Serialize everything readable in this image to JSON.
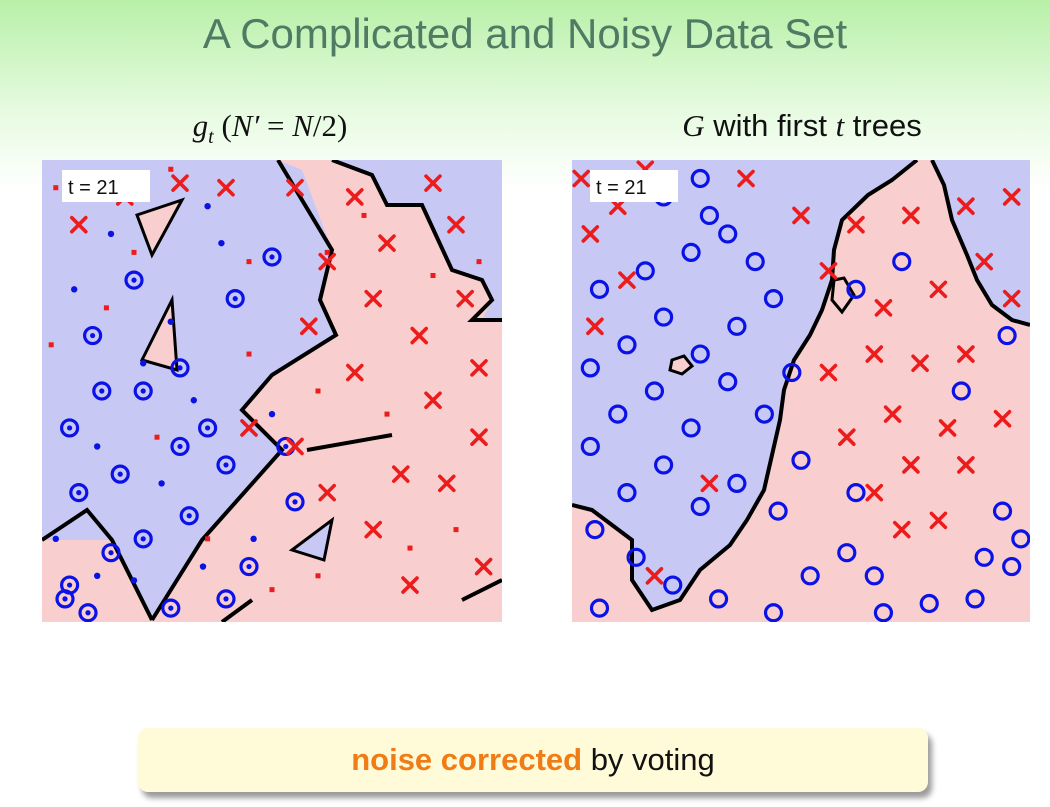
{
  "slide": {
    "title": "A Complicated and Noisy Data Set"
  },
  "panels": [
    {
      "id": "left",
      "caption_parts": [
        "g",
        "t",
        " (",
        "N′",
        " = ",
        "N",
        "/2)"
      ],
      "badge": "t = 21"
    },
    {
      "id": "right",
      "caption_parts": [
        "G",
        " with first ",
        "t",
        " trees"
      ],
      "badge": "t = 21"
    }
  ],
  "note": {
    "highlight": "noise corrected",
    "rest": " by voting"
  },
  "colors": {
    "positive_region": "#c8c8f4",
    "negative_region": "#f8cece",
    "positive_mark": "#0a12e6",
    "negative_mark": "#ec1c1c",
    "boundary": "#000000",
    "title": "#4f7a63",
    "highlight": "#f07c15"
  },
  "chart_data": [
    {
      "type": "scatter",
      "panel": "left",
      "xlim": [
        0,
        1
      ],
      "ylim": [
        0,
        1
      ],
      "grid": false,
      "note": "Axes are unlabeled; values are positions in the unit square (y from top).",
      "series": [
        {
          "values": [
            [
              0.1,
              0.98
            ],
            [
              0.05,
              0.95
            ],
            [
              0.15,
              0.85
            ],
            [
              0.22,
              0.82
            ],
            [
              0.28,
              0.97
            ],
            [
              0.4,
              0.95
            ],
            [
              0.45,
              0.88
            ],
            [
              0.32,
              0.77
            ],
            [
              0.08,
              0.72
            ],
            [
              0.17,
              0.68
            ],
            [
              0.3,
              0.62
            ],
            [
              0.4,
              0.66
            ],
            [
              0.36,
              0.58
            ],
            [
              0.06,
              0.58
            ],
            [
              0.13,
              0.5
            ],
            [
              0.22,
              0.5
            ],
            [
              0.11,
              0.38
            ],
            [
              0.3,
              0.45
            ],
            [
              0.2,
              0.26
            ],
            [
              0.42,
              0.3
            ],
            [
              0.5,
              0.21
            ],
            [
              0.55,
              0.74
            ],
            [
              0.53,
              0.62
            ],
            [
              0.06,
              0.92
            ]
          ]
        },
        {
          "values": [
            [
              0.12,
              0.9
            ],
            [
              0.2,
              0.91
            ],
            [
              0.35,
              0.88
            ],
            [
              0.12,
              0.62
            ],
            [
              0.26,
              0.7
            ],
            [
              0.33,
              0.52
            ],
            [
              0.22,
              0.44
            ],
            [
              0.07,
              0.28
            ],
            [
              0.28,
              0.35
            ],
            [
              0.39,
              0.18
            ],
            [
              0.46,
              0.82
            ],
            [
              0.5,
              0.55
            ],
            [
              0.15,
              0.16
            ],
            [
              0.36,
              0.1
            ],
            [
              0.03,
              0.82
            ]
          ]
        },
        {
          "values": [
            [
              0.55,
              0.62
            ],
            [
              0.62,
              0.72
            ],
            [
              0.72,
              0.8
            ],
            [
              0.78,
              0.68
            ],
            [
              0.88,
              0.7
            ],
            [
              0.95,
              0.6
            ],
            [
              0.85,
              0.52
            ],
            [
              0.68,
              0.46
            ],
            [
              0.58,
              0.36
            ],
            [
              0.72,
              0.3
            ],
            [
              0.82,
              0.38
            ],
            [
              0.92,
              0.3
            ],
            [
              0.95,
              0.45
            ],
            [
              0.62,
              0.22
            ],
            [
              0.75,
              0.18
            ],
            [
              0.9,
              0.14
            ],
            [
              0.55,
              0.06
            ],
            [
              0.4,
              0.06
            ],
            [
              0.08,
              0.14
            ],
            [
              0.18,
              0.08
            ],
            [
              0.3,
              0.05
            ],
            [
              0.85,
              0.05
            ],
            [
              0.68,
              0.08
            ],
            [
              0.8,
              0.92
            ],
            [
              0.96,
              0.88
            ],
            [
              0.45,
              0.58
            ]
          ]
        },
        {
          "values": [
            [
              0.36,
              0.82
            ],
            [
              0.25,
              0.6
            ],
            [
              0.14,
              0.32
            ],
            [
              0.45,
              0.42
            ],
            [
              0.95,
              0.22
            ],
            [
              0.02,
              0.4
            ],
            [
              0.03,
              0.06
            ],
            [
              0.5,
              0.93
            ],
            [
              0.8,
              0.84
            ],
            [
              0.6,
              0.9
            ],
            [
              0.28,
              0.02
            ],
            [
              0.45,
              0.22
            ],
            [
              0.6,
              0.5
            ],
            [
              0.7,
              0.12
            ],
            [
              0.85,
              0.25
            ],
            [
              0.9,
              0.8
            ],
            [
              0.75,
              0.55
            ],
            [
              0.2,
              0.2
            ],
            [
              0.62,
              0.2
            ]
          ]
        }
      ]
    },
    {
      "type": "scatter",
      "panel": "right",
      "xlim": [
        0,
        1
      ],
      "ylim": [
        0,
        1
      ],
      "grid": false,
      "note": "Axes are unlabeled; values are positions in the unit square (y from top).",
      "series": [
        {
          "values": [
            [
              0.06,
              0.97
            ],
            [
              0.14,
              0.86
            ],
            [
              0.22,
              0.92
            ],
            [
              0.32,
              0.95
            ],
            [
              0.44,
              0.98
            ],
            [
              0.52,
              0.9
            ],
            [
              0.6,
              0.85
            ],
            [
              0.68,
              0.98
            ],
            [
              0.78,
              0.96
            ],
            [
              0.88,
              0.95
            ],
            [
              0.96,
              0.88
            ],
            [
              0.05,
              0.8
            ],
            [
              0.12,
              0.72
            ],
            [
              0.2,
              0.66
            ],
            [
              0.28,
              0.75
            ],
            [
              0.36,
              0.7
            ],
            [
              0.45,
              0.76
            ],
            [
              0.5,
              0.65
            ],
            [
              0.04,
              0.62
            ],
            [
              0.1,
              0.55
            ],
            [
              0.18,
              0.5
            ],
            [
              0.26,
              0.58
            ],
            [
              0.34,
              0.48
            ],
            [
              0.42,
              0.55
            ],
            [
              0.48,
              0.46
            ],
            [
              0.04,
              0.45
            ],
            [
              0.12,
              0.4
            ],
            [
              0.2,
              0.34
            ],
            [
              0.28,
              0.42
            ],
            [
              0.36,
              0.36
            ],
            [
              0.44,
              0.3
            ],
            [
              0.06,
              0.28
            ],
            [
              0.16,
              0.24
            ],
            [
              0.26,
              0.2
            ],
            [
              0.34,
              0.16
            ],
            [
              0.4,
              0.22
            ],
            [
              0.2,
              0.08
            ],
            [
              0.3,
              0.12
            ],
            [
              0.94,
              0.76
            ],
            [
              0.98,
              0.82
            ],
            [
              0.9,
              0.86
            ],
            [
              0.62,
              0.72
            ],
            [
              0.66,
              0.9
            ],
            [
              0.28,
              0.04
            ],
            [
              0.85,
              0.5
            ],
            [
              0.95,
              0.38
            ],
            [
              0.62,
              0.28
            ],
            [
              0.72,
              0.22
            ]
          ]
        },
        {
          "values": [
            [
              0.66,
              0.72
            ],
            [
              0.72,
              0.8
            ],
            [
              0.8,
              0.78
            ],
            [
              0.74,
              0.66
            ],
            [
              0.86,
              0.66
            ],
            [
              0.82,
              0.58
            ],
            [
              0.7,
              0.55
            ],
            [
              0.6,
              0.6
            ],
            [
              0.56,
              0.46
            ],
            [
              0.66,
              0.42
            ],
            [
              0.76,
              0.44
            ],
            [
              0.86,
              0.42
            ],
            [
              0.94,
              0.56
            ],
            [
              0.96,
              0.3
            ],
            [
              0.9,
              0.22
            ],
            [
              0.8,
              0.28
            ],
            [
              0.68,
              0.32
            ],
            [
              0.56,
              0.24
            ],
            [
              0.5,
              0.12
            ],
            [
              0.62,
              0.14
            ],
            [
              0.74,
              0.12
            ],
            [
              0.86,
              0.1
            ],
            [
              0.96,
              0.08
            ],
            [
              0.04,
              0.16
            ],
            [
              0.1,
              0.1
            ],
            [
              0.02,
              0.04
            ],
            [
              0.16,
              0.02
            ],
            [
              0.38,
              0.04
            ],
            [
              0.18,
              0.9
            ],
            [
              0.05,
              0.36
            ],
            [
              0.3,
              0.7
            ],
            [
              0.12,
              0.26
            ]
          ]
        }
      ]
    }
  ]
}
